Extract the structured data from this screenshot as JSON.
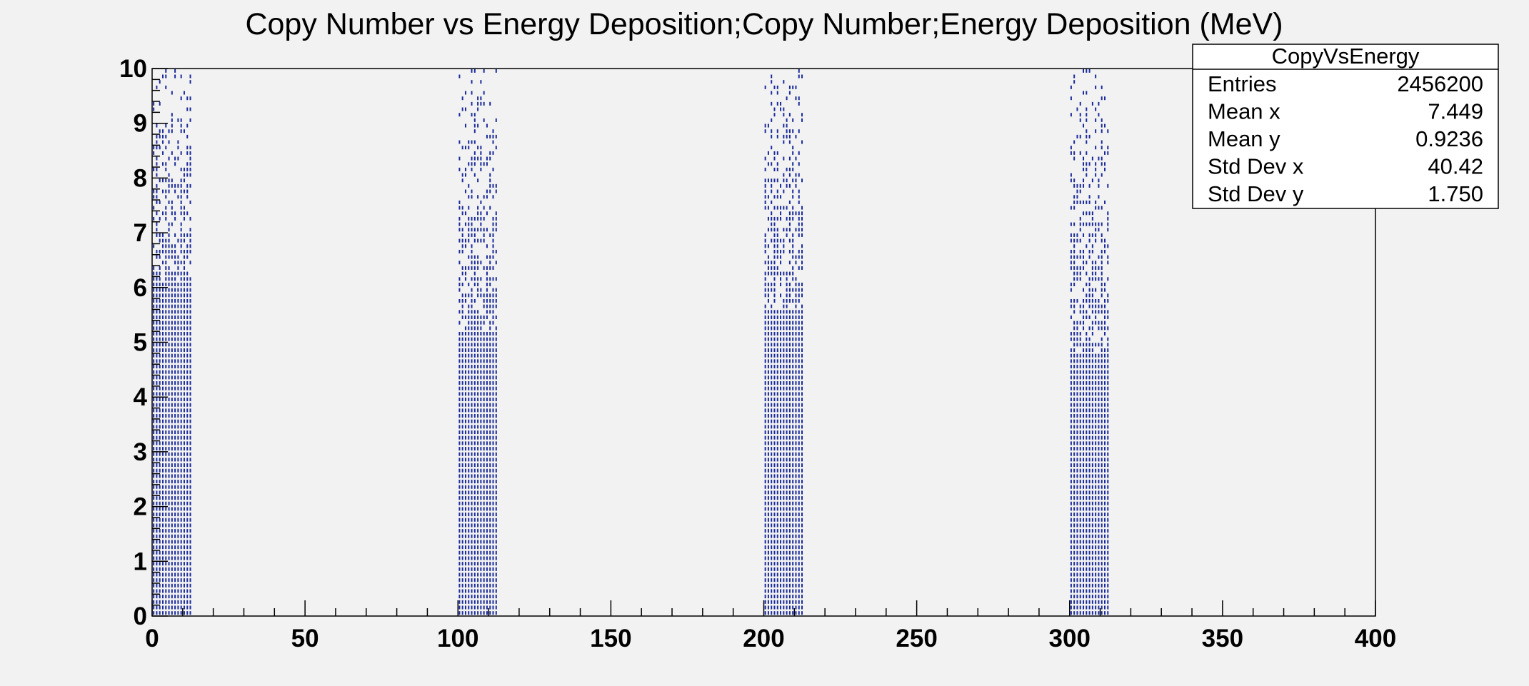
{
  "chart_data": {
    "type": "scatter",
    "title": "Copy Number vs Energy Deposition;Copy Number;Energy Deposition (MeV)",
    "xlabel": "",
    "ylabel": "",
    "xlim": [
      0,
      400
    ],
    "ylim": [
      0,
      10
    ],
    "x_ticks": [
      "0",
      "50",
      "100",
      "150",
      "200",
      "250",
      "300",
      "350",
      "400"
    ],
    "y_ticks": [
      "0",
      "1",
      "2",
      "3",
      "4",
      "5",
      "6",
      "7",
      "8",
      "9",
      "10"
    ],
    "grid": false,
    "marker_color": "#1a2a9a",
    "clusters": [
      {
        "x_min": 0,
        "x_max": 13,
        "y_dense_max": 6.0,
        "y_sparse_max": 10.0
      },
      {
        "x_min": 100,
        "x_max": 113,
        "y_dense_max": 5.1,
        "y_sparse_max": 10.0
      },
      {
        "x_min": 200,
        "x_max": 213,
        "y_dense_max": 5.5,
        "y_sparse_max": 10.0
      },
      {
        "x_min": 300,
        "x_max": 313,
        "y_dense_max": 4.7,
        "y_sparse_max": 10.0
      }
    ],
    "stats_box": {
      "name": "CopyVsEnergy",
      "rows": [
        {
          "label": "Entries",
          "value": "2456200"
        },
        {
          "label": "Mean x",
          "value": "7.449"
        },
        {
          "label": "Mean y",
          "value": "0.9236"
        },
        {
          "label": "Std Dev x",
          "value": "40.42"
        },
        {
          "label": "Std Dev y",
          "value": "1.750"
        }
      ]
    }
  }
}
